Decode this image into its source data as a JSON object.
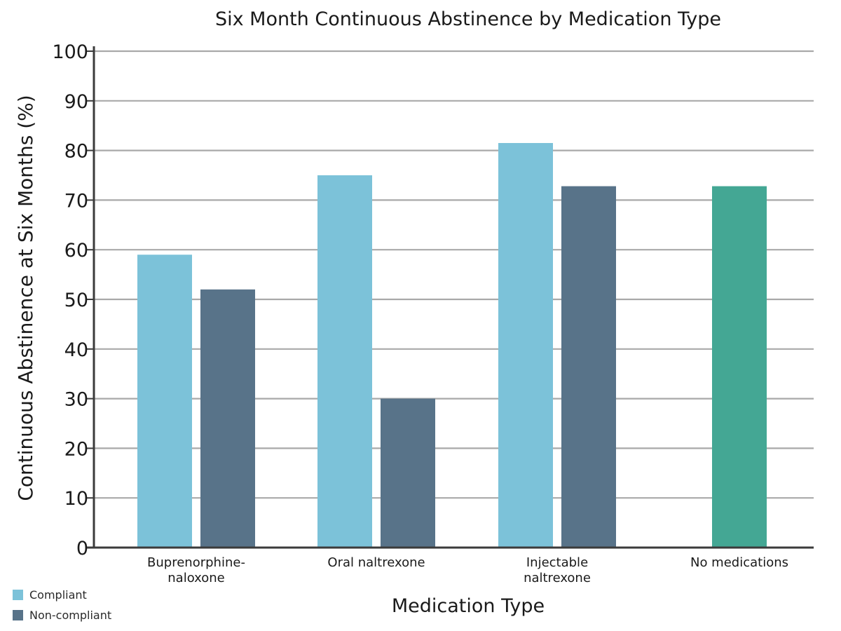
{
  "chart_data": {
    "type": "bar",
    "title": "Six Month Continuous Abstinence by Medication Type",
    "xlabel": "Medication Type",
    "ylabel": "Continuous Abstinence at Six Months (%)",
    "ylim": [
      0,
      100
    ],
    "yticks": [
      0,
      10,
      20,
      30,
      40,
      50,
      60,
      70,
      80,
      90,
      100
    ],
    "grid": true,
    "legend_position": "bottom-left",
    "categories": [
      [
        "Buprenorphine-",
        "naloxone"
      ],
      [
        "Oral naltrexone"
      ],
      [
        "Injectable",
        "naltrexone"
      ],
      [
        "No medications"
      ]
    ],
    "series": [
      {
        "name": "Compliant",
        "color": "#7cc2d9",
        "values": [
          59,
          75,
          81.5,
          null
        ]
      },
      {
        "name": "Non-compliant",
        "color": "#587389",
        "values": [
          52,
          30,
          72.8,
          null
        ]
      },
      {
        "name": "",
        "color": "#44a794",
        "values": [
          null,
          null,
          null,
          72.8
        ]
      }
    ],
    "legend": [
      {
        "label": "Compliant",
        "color": "#7cc2d9"
      },
      {
        "label": "Non-compliant",
        "color": "#587389"
      }
    ]
  }
}
